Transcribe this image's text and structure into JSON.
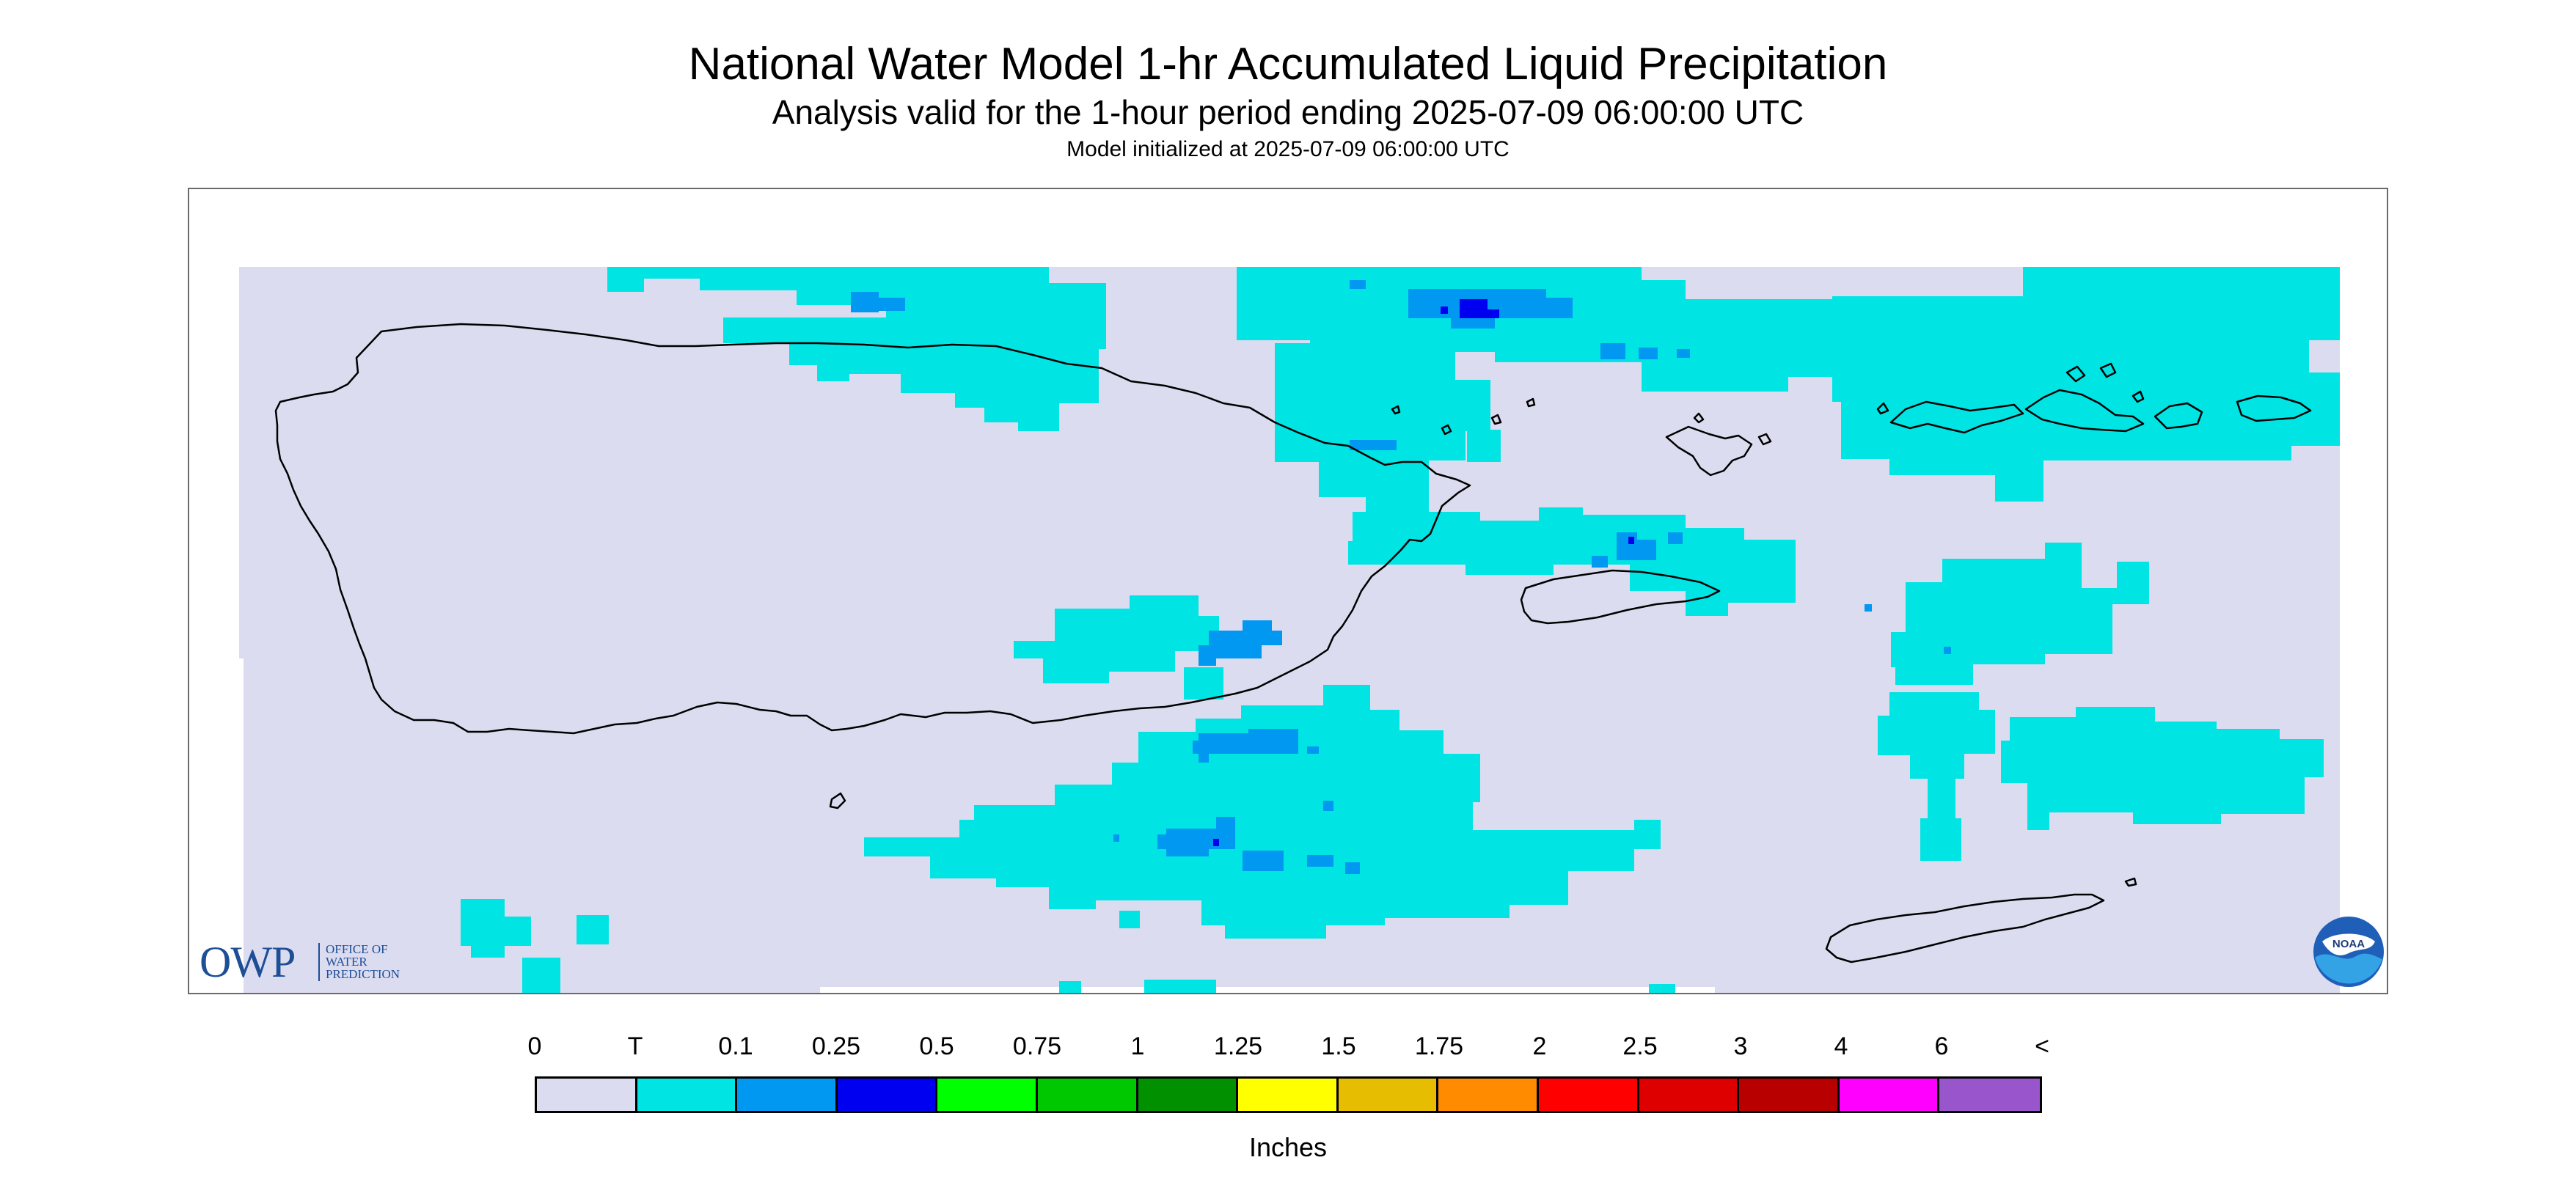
{
  "header": {
    "title": "National Water Model 1-hr Accumulated Liquid Precipitation",
    "subtitle": "Analysis valid for the 1-hour period ending 2025-07-09 06:00:00 UTC",
    "init": "Model initialized at 2025-07-09 06:00:00 UTC"
  },
  "map": {
    "background_color": "#dcdcf0",
    "outside_color": "#ffffff",
    "coast_color": "#000000"
  },
  "logos": {
    "owp": {
      "letters": "OWP",
      "subtitle": "OFFICE OF\nWATER\nPREDICTION"
    },
    "noaa": {
      "text": "NOAA"
    }
  },
  "legend": {
    "unit": "Inches",
    "ticks": [
      "0",
      "T",
      "0.1",
      "0.25",
      "0.5",
      "0.75",
      "1",
      "1.25",
      "1.5",
      "1.75",
      "2",
      "2.5",
      "3",
      "4",
      "6",
      "<"
    ],
    "colors": [
      "#dcdcf0",
      "#00e4e4",
      "#0098f0",
      "#0000f0",
      "#00ff00",
      "#00c800",
      "#009000",
      "#ffff00",
      "#e6bd00",
      "#ff8c00",
      "#ff0000",
      "#de0000",
      "#b80000",
      "#ff00ff",
      "#9955cc"
    ]
  }
}
